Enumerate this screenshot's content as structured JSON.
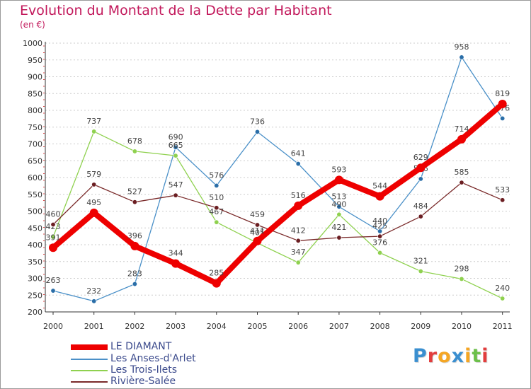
{
  "header": {
    "title": "Evolution du Montant de la Dette par Habitant",
    "subtitle": "(en €)"
  },
  "logo": {
    "text": "Proxiti"
  },
  "colors": {
    "title": "#c2185b",
    "legend_text": "#3b4a8c",
    "grid": "#cccccc"
  },
  "chart_data": {
    "type": "line",
    "title": "Evolution du Montant de la Dette par Habitant",
    "ylabel": "(en €)",
    "xlabel": "",
    "categories": [
      "2000",
      "2001",
      "2002",
      "2003",
      "2004",
      "2005",
      "2006",
      "2007",
      "2008",
      "2009",
      "2010",
      "2011"
    ],
    "ylim": [
      200,
      1000
    ],
    "yticks": [
      "200",
      "250",
      "300",
      "350",
      "400",
      "450",
      "500",
      "550",
      "600",
      "650",
      "700",
      "750",
      "800",
      "850",
      "900",
      "950",
      "1000"
    ],
    "grid": "horizontal dashed",
    "legend": "bottom-left",
    "series": [
      {
        "name": "Les Anses-d'Arlet",
        "color": "#4a90c8",
        "point_color": "#2a6ea8",
        "values": [
          263,
          232,
          283,
          690,
          576,
          736,
          641,
          513,
          440,
          596,
          958,
          776
        ]
      },
      {
        "name": "Les Trois-Ilets",
        "color": "#8fd14f",
        "point_color": "#8fd14f",
        "values": [
          423,
          737,
          678,
          665,
          467,
          405,
          347,
          490,
          376,
          321,
          298,
          240
        ]
      },
      {
        "name": "Rivière-Salée",
        "color": "#7a2a2a",
        "point_color": "#6b1e22",
        "values": [
          460,
          579,
          527,
          547,
          510,
          459,
          412,
          421,
          425,
          484,
          585,
          533
        ]
      },
      {
        "name": "LE DIAMANT",
        "color": "#ee0000",
        "point_color": "#ee0000",
        "values": [
          391,
          495,
          396,
          344,
          285,
          411,
          516,
          593,
          544,
          629,
          714,
          819
        ]
      }
    ]
  }
}
